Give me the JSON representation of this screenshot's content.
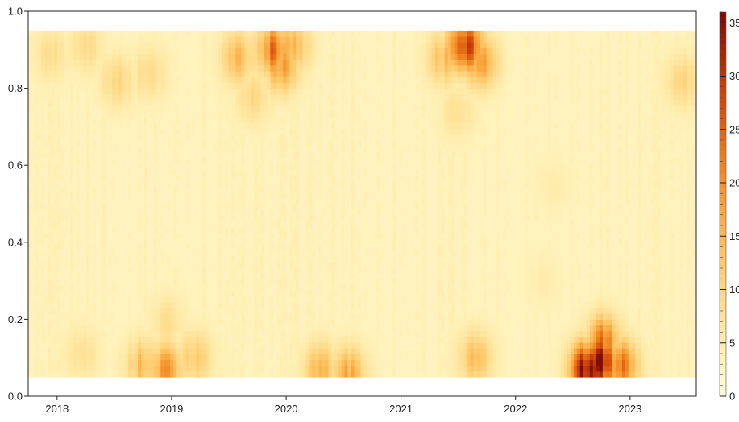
{
  "chart_data": {
    "type": "heatmap",
    "title": "",
    "xlabel": "",
    "ylabel": "",
    "x_range": [
      "2017-10-01",
      "2023-07-31"
    ],
    "ylim": [
      0.0,
      1.0
    ],
    "data_y_range": [
      0.05,
      0.95
    ],
    "x_ticks": [
      "2018",
      "2019",
      "2020",
      "2021",
      "2022",
      "2023"
    ],
    "y_ticks": [
      "0.0",
      "0.2",
      "0.4",
      "0.6",
      "0.8",
      "1.0"
    ],
    "colorbar": {
      "min": 0,
      "max": 36,
      "ticks": [
        "0",
        "5",
        "10",
        "15",
        "20",
        "25",
        "30",
        "35"
      ],
      "colors": [
        "#fffbd9",
        "#ffeeb0",
        "#fedc8c",
        "#fdc463",
        "#f9a23a",
        "#ee7d1b",
        "#d8510b",
        "#b12a06",
        "#7a0c0a"
      ]
    },
    "background_level": 3,
    "hotspots": [
      {
        "x": "2017-12-15",
        "y": 0.89,
        "value": 8
      },
      {
        "x": "2018-04-01",
        "y": 0.91,
        "value": 9
      },
      {
        "x": "2018-07-15",
        "y": 0.82,
        "value": 10
      },
      {
        "x": "2018-10-20",
        "y": 0.84,
        "value": 9
      },
      {
        "x": "2019-08-01",
        "y": 0.88,
        "value": 14
      },
      {
        "x": "2019-09-20",
        "y": 0.78,
        "value": 10
      },
      {
        "x": "2019-11-20",
        "y": 0.9,
        "value": 22
      },
      {
        "x": "2019-12-20",
        "y": 0.86,
        "value": 18
      },
      {
        "x": "2020-01-20",
        "y": 0.91,
        "value": 16
      },
      {
        "x": "2021-05-20",
        "y": 0.88,
        "value": 14
      },
      {
        "x": "2021-07-25",
        "y": 0.91,
        "value": 30
      },
      {
        "x": "2021-09-10",
        "y": 0.87,
        "value": 18
      },
      {
        "x": "2021-07-01",
        "y": 0.74,
        "value": 8
      },
      {
        "x": "2023-06-20",
        "y": 0.82,
        "value": 10
      },
      {
        "x": "2018-03-20",
        "y": 0.11,
        "value": 8
      },
      {
        "x": "2018-10-01",
        "y": 0.08,
        "value": 14
      },
      {
        "x": "2018-12-15",
        "y": 0.07,
        "value": 18
      },
      {
        "x": "2019-03-15",
        "y": 0.1,
        "value": 12
      },
      {
        "x": "2018-12-20",
        "y": 0.19,
        "value": 8
      },
      {
        "x": "2020-04-20",
        "y": 0.07,
        "value": 14
      },
      {
        "x": "2020-07-20",
        "y": 0.06,
        "value": 16
      },
      {
        "x": "2021-08-25",
        "y": 0.1,
        "value": 14
      },
      {
        "x": "2022-10-01",
        "y": 0.09,
        "value": 32
      },
      {
        "x": "2022-08-20",
        "y": 0.07,
        "value": 35
      },
      {
        "x": "2022-12-01",
        "y": 0.08,
        "value": 24
      },
      {
        "x": "2022-10-10",
        "y": 0.14,
        "value": 22
      },
      {
        "x": "2022-05-01",
        "y": 0.55,
        "value": 5
      },
      {
        "x": "2022-04-01",
        "y": 0.3,
        "value": 5
      }
    ]
  }
}
